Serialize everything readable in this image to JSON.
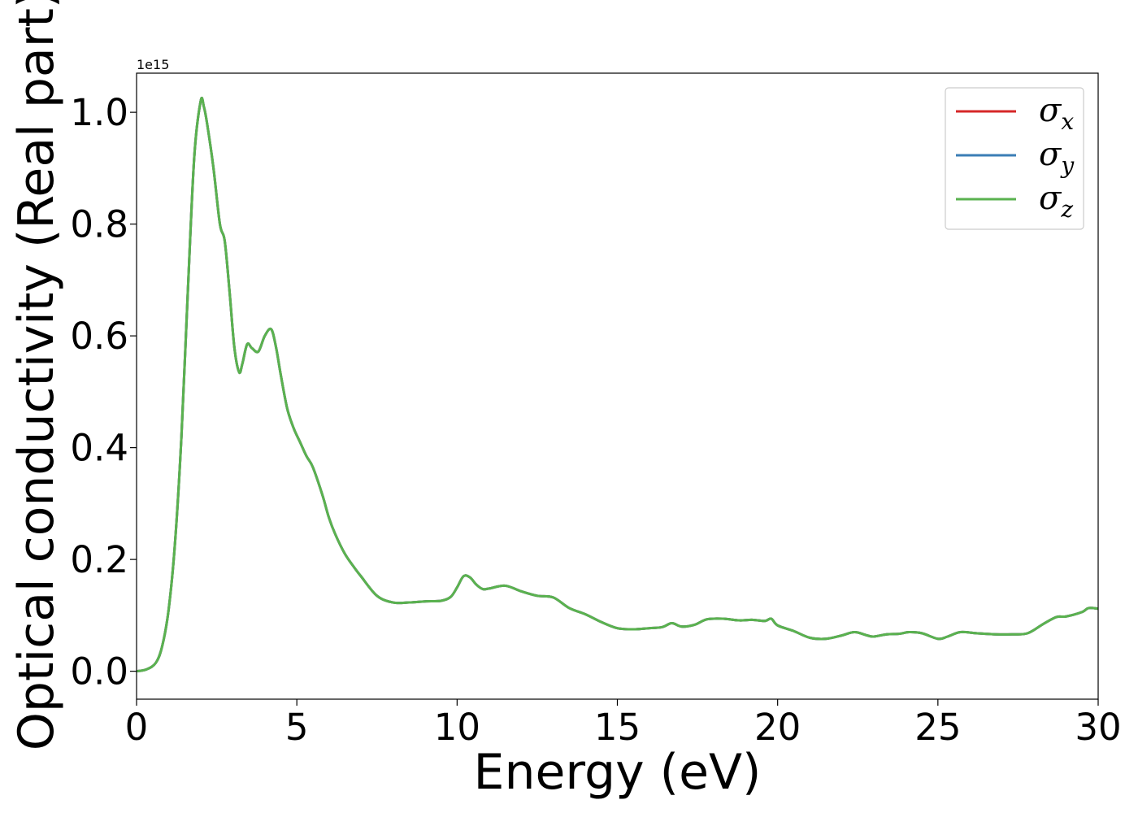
{
  "chart_data": {
    "type": "line",
    "title": "",
    "xlabel": "Energy (eV)",
    "ylabel": "Optical conductivity (Real part)",
    "y_offset_label": "1e15",
    "xlim": [
      0,
      30
    ],
    "ylim": [
      -0.05,
      1.07
    ],
    "xticks": [
      0,
      5,
      10,
      15,
      20,
      25,
      30
    ],
    "xtick_labels": [
      "0",
      "5",
      "10",
      "15",
      "20",
      "25",
      "30"
    ],
    "yticks": [
      0.0,
      0.2,
      0.4,
      0.6,
      0.8,
      1.0
    ],
    "ytick_labels": [
      "0.0",
      "0.2",
      "0.4",
      "0.6",
      "0.8",
      "1.0"
    ],
    "grid": false,
    "legend_position": "top-right",
    "x": [
      0,
      0.3,
      0.6,
      0.8,
      1.0,
      1.2,
      1.4,
      1.6,
      1.8,
      2.0,
      2.1,
      2.2,
      2.4,
      2.6,
      2.75,
      2.9,
      3.05,
      3.2,
      3.3,
      3.45,
      3.6,
      3.8,
      4.0,
      4.2,
      4.35,
      4.5,
      4.7,
      4.9,
      5.1,
      5.3,
      5.5,
      5.8,
      6.0,
      6.2,
      6.5,
      6.8,
      7.0,
      7.5,
      8.0,
      8.5,
      9.0,
      9.5,
      9.8,
      10.0,
      10.2,
      10.4,
      10.6,
      10.8,
      11.0,
      11.5,
      12.0,
      12.5,
      13.0,
      13.5,
      14.0,
      14.5,
      15.0,
      15.5,
      16.0,
      16.4,
      16.7,
      17.0,
      17.4,
      17.8,
      18.3,
      18.8,
      19.2,
      19.6,
      19.8,
      20.0,
      20.5,
      21.0,
      21.5,
      22.0,
      22.4,
      22.8,
      23.0,
      23.4,
      23.8,
      24.1,
      24.5,
      25.0,
      25.3,
      25.7,
      26.2,
      26.8,
      27.3,
      27.8,
      28.3,
      28.7,
      29.0,
      29.5,
      29.7,
      30.0
    ],
    "series": [
      {
        "name": "σ_x",
        "color": "#d62728",
        "values": [
          0.0,
          0.003,
          0.015,
          0.045,
          0.11,
          0.23,
          0.42,
          0.68,
          0.92,
          1.02,
          1.01,
          0.98,
          0.9,
          0.8,
          0.77,
          0.68,
          0.58,
          0.535,
          0.55,
          0.585,
          0.578,
          0.572,
          0.6,
          0.612,
          0.58,
          0.53,
          0.47,
          0.435,
          0.41,
          0.385,
          0.365,
          0.315,
          0.275,
          0.245,
          0.21,
          0.185,
          0.17,
          0.135,
          0.123,
          0.123,
          0.125,
          0.126,
          0.133,
          0.15,
          0.17,
          0.168,
          0.155,
          0.147,
          0.148,
          0.153,
          0.143,
          0.135,
          0.132,
          0.113,
          0.102,
          0.088,
          0.077,
          0.075,
          0.077,
          0.079,
          0.086,
          0.08,
          0.083,
          0.093,
          0.094,
          0.091,
          0.092,
          0.09,
          0.094,
          0.082,
          0.072,
          0.06,
          0.058,
          0.064,
          0.07,
          0.064,
          0.062,
          0.066,
          0.067,
          0.07,
          0.068,
          0.058,
          0.062,
          0.07,
          0.068,
          0.066,
          0.066,
          0.068,
          0.085,
          0.097,
          0.098,
          0.106,
          0.113,
          0.112
        ]
      },
      {
        "name": "σ_y",
        "color": "#3b7eb5",
        "values": [
          0.0,
          0.003,
          0.015,
          0.045,
          0.11,
          0.23,
          0.42,
          0.68,
          0.92,
          1.02,
          1.01,
          0.98,
          0.9,
          0.8,
          0.77,
          0.68,
          0.58,
          0.535,
          0.55,
          0.585,
          0.578,
          0.572,
          0.6,
          0.612,
          0.58,
          0.53,
          0.47,
          0.435,
          0.41,
          0.385,
          0.365,
          0.315,
          0.275,
          0.245,
          0.21,
          0.185,
          0.17,
          0.135,
          0.123,
          0.123,
          0.125,
          0.126,
          0.133,
          0.15,
          0.17,
          0.168,
          0.155,
          0.147,
          0.148,
          0.153,
          0.143,
          0.135,
          0.132,
          0.113,
          0.102,
          0.088,
          0.077,
          0.075,
          0.077,
          0.079,
          0.086,
          0.08,
          0.083,
          0.093,
          0.094,
          0.091,
          0.092,
          0.09,
          0.094,
          0.082,
          0.072,
          0.06,
          0.058,
          0.064,
          0.07,
          0.064,
          0.062,
          0.066,
          0.067,
          0.07,
          0.068,
          0.058,
          0.062,
          0.07,
          0.068,
          0.066,
          0.066,
          0.068,
          0.085,
          0.097,
          0.098,
          0.106,
          0.113,
          0.112
        ]
      },
      {
        "name": "σ_z",
        "color": "#5ab24f",
        "values": [
          0.0,
          0.003,
          0.015,
          0.045,
          0.11,
          0.23,
          0.42,
          0.68,
          0.92,
          1.02,
          1.01,
          0.98,
          0.9,
          0.8,
          0.77,
          0.68,
          0.58,
          0.535,
          0.55,
          0.585,
          0.578,
          0.572,
          0.6,
          0.612,
          0.58,
          0.53,
          0.47,
          0.435,
          0.41,
          0.385,
          0.365,
          0.315,
          0.275,
          0.245,
          0.21,
          0.185,
          0.17,
          0.135,
          0.123,
          0.123,
          0.125,
          0.126,
          0.133,
          0.15,
          0.17,
          0.168,
          0.155,
          0.147,
          0.148,
          0.153,
          0.143,
          0.135,
          0.132,
          0.113,
          0.102,
          0.088,
          0.077,
          0.075,
          0.077,
          0.079,
          0.086,
          0.08,
          0.083,
          0.093,
          0.094,
          0.091,
          0.092,
          0.09,
          0.094,
          0.082,
          0.072,
          0.06,
          0.058,
          0.064,
          0.07,
          0.064,
          0.062,
          0.066,
          0.067,
          0.07,
          0.068,
          0.058,
          0.062,
          0.07,
          0.068,
          0.066,
          0.066,
          0.068,
          0.085,
          0.097,
          0.098,
          0.106,
          0.113,
          0.112
        ]
      }
    ]
  }
}
